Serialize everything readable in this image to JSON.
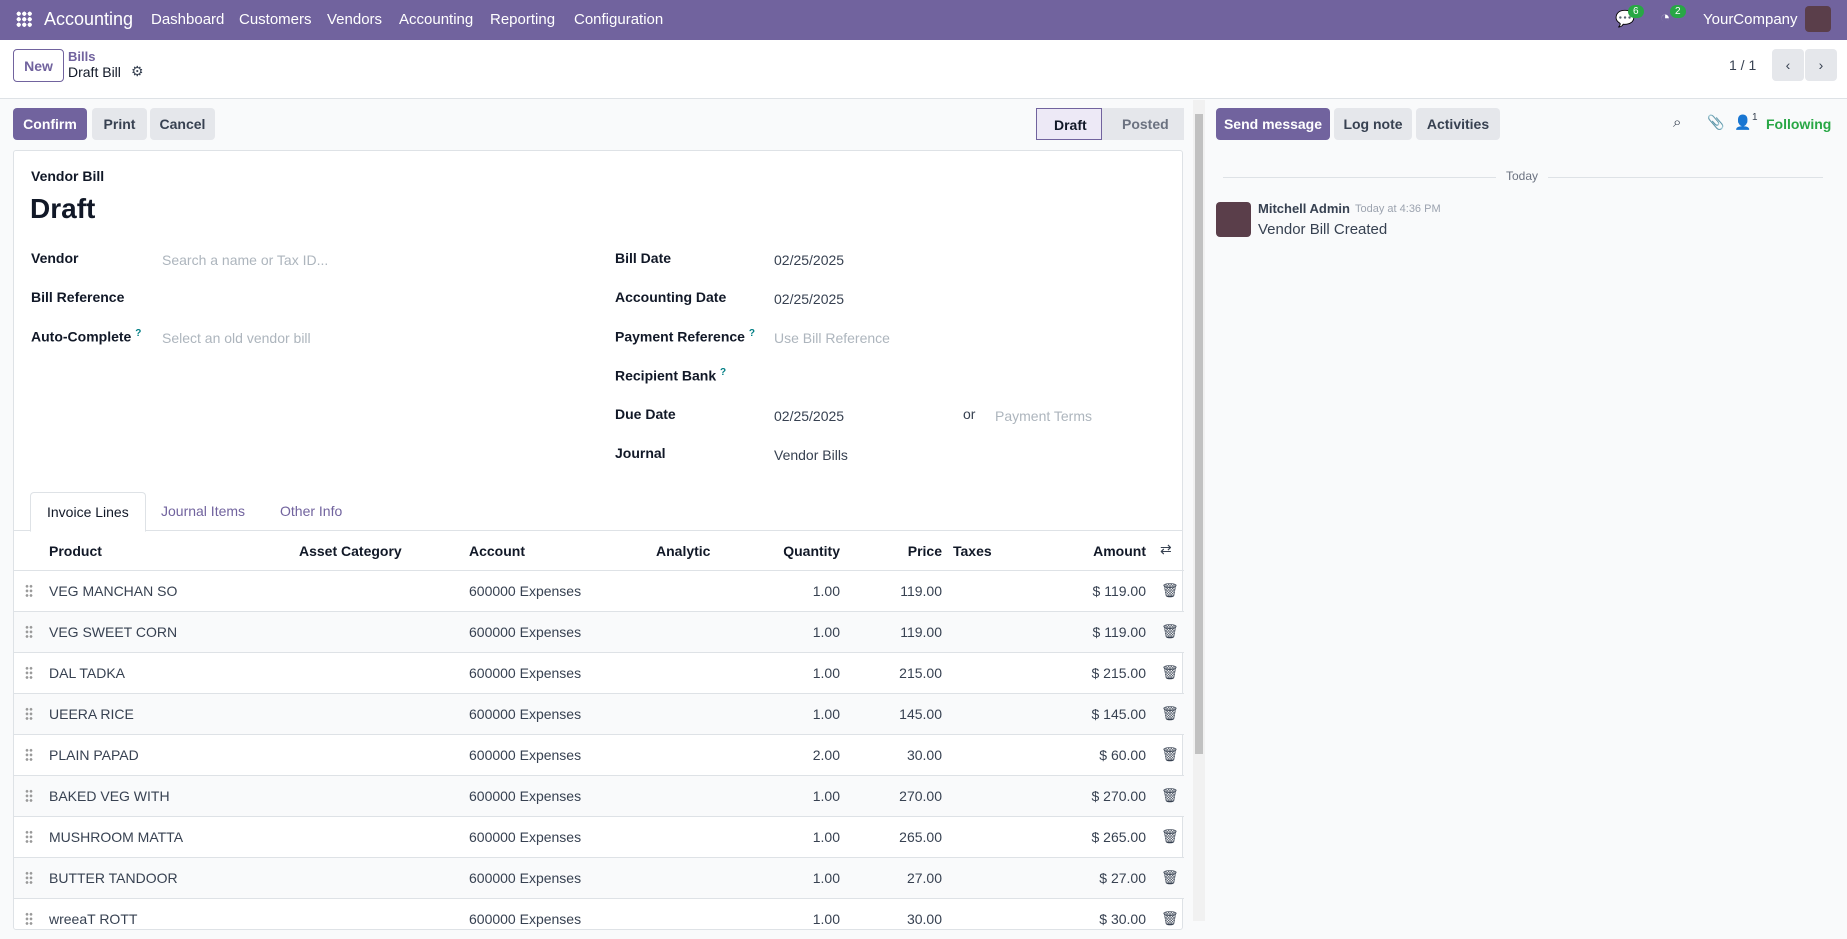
{
  "nav": {
    "app": "Accounting",
    "menu": [
      "Dashboard",
      "Customers",
      "Vendors",
      "Accounting",
      "Reporting",
      "Configuration"
    ],
    "messages_count": "6",
    "activities_count": "2",
    "company": "YourCompany"
  },
  "control": {
    "new": "New",
    "breadcrumb_parent": "Bills",
    "breadcrumb_current": "Draft Bill",
    "pager": "1 / 1"
  },
  "actions": {
    "confirm": "Confirm",
    "print": "Print",
    "cancel": "Cancel"
  },
  "status": {
    "steps": [
      "Draft",
      "Posted"
    ],
    "active": "Draft"
  },
  "form": {
    "type": "Vendor Bill",
    "name": "Draft",
    "left": [
      {
        "label": "Vendor",
        "placeholder": "Search a name or Tax ID..."
      },
      {
        "label": "Bill Reference"
      },
      {
        "label": "Auto-Complete",
        "help": "?",
        "placeholder": "Select an old vendor bill"
      }
    ],
    "right": [
      {
        "label": "Bill Date",
        "value": "02/25/2025"
      },
      {
        "label": "Accounting Date",
        "value": "02/25/2025"
      },
      {
        "label": "Payment Reference",
        "help": "?",
        "placeholder": "Use Bill Reference"
      },
      {
        "label": "Recipient Bank",
        "help": "?"
      },
      {
        "label": "Due Date",
        "value": "02/25/2025"
      },
      {
        "label": "Journal",
        "value": "Vendor Bills"
      }
    ],
    "or": "or",
    "payment_terms_placeholder": "Payment Terms"
  },
  "tabs": [
    "Invoice Lines",
    "Journal Items",
    "Other Info"
  ],
  "table": {
    "headers": [
      "Product",
      "Asset Category",
      "Account",
      "Analytic",
      "Quantity",
      "Price",
      "Taxes",
      "Amount"
    ],
    "rows": [
      [
        "VEG MANCHAN SO",
        "600000 Expenses",
        "1.00",
        "119.00",
        "$ 119.00"
      ],
      [
        "VEG SWEET CORN",
        "600000 Expenses",
        "1.00",
        "119.00",
        "$ 119.00"
      ],
      [
        "DAL TADKA",
        "600000 Expenses",
        "1.00",
        "215.00",
        "$ 215.00"
      ],
      [
        "UEERA RICE",
        "600000 Expenses",
        "1.00",
        "145.00",
        "$ 145.00"
      ],
      [
        "PLAIN PAPAD",
        "600000 Expenses",
        "2.00",
        "30.00",
        "$ 60.00"
      ],
      [
        "BAKED VEG WITH",
        "600000 Expenses",
        "1.00",
        "270.00",
        "$ 270.00"
      ],
      [
        "MUSHROOM MATTA",
        "600000 Expenses",
        "1.00",
        "265.00",
        "$ 265.00"
      ],
      [
        "BUTTER TANDOOR",
        "600000 Expenses",
        "1.00",
        "27.00",
        "$ 27.00"
      ],
      [
        "wreeaT ROTT",
        "600000 Expenses",
        "1.00",
        "30.00",
        "$ 30.00"
      ]
    ]
  },
  "chatter": {
    "send": "Send message",
    "log": "Log note",
    "activities": "Activities",
    "followers": "1",
    "following": "Following",
    "date_sep": "Today",
    "author": "Mitchell Admin",
    "time": "Today at 4:36 PM",
    "body": "Vendor Bill Created"
  }
}
